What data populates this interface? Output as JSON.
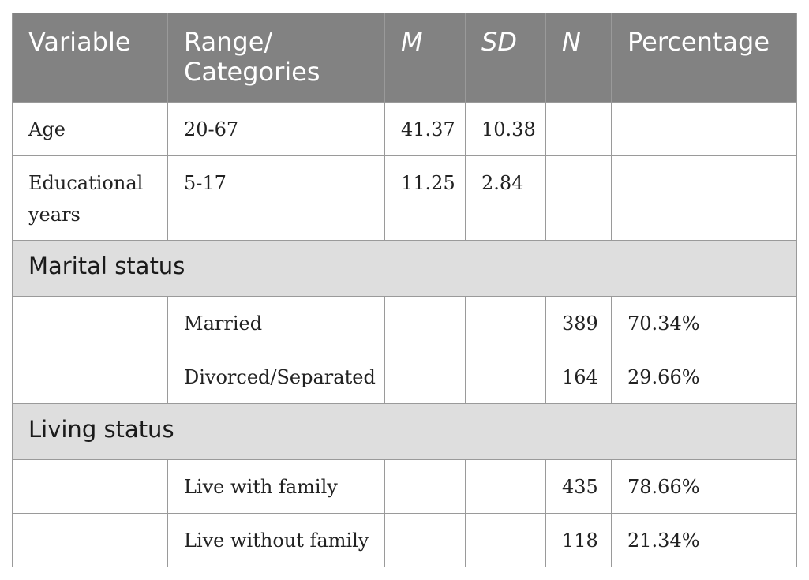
{
  "table": {
    "headers": [
      "Variable",
      "Range/ Categories",
      "M",
      "SD",
      "N",
      "Percentage"
    ],
    "rows": {
      "age": {
        "variable": "Age",
        "range": "20-67",
        "m": "41.37",
        "sd": "10.38",
        "n": "",
        "pct": ""
      },
      "edu": {
        "variable": "Educational years",
        "range": "5-17",
        "m": "11.25",
        "sd": "2.84",
        "n": "",
        "pct": ""
      }
    },
    "sections": {
      "marital": {
        "title": "Marital status",
        "rows": [
          {
            "category": "Married",
            "n": "389",
            "pct": "70.34%"
          },
          {
            "category": "Divorced/Separated",
            "n": "164",
            "pct": "29.66%"
          }
        ]
      },
      "living": {
        "title": "Living status",
        "rows": [
          {
            "category": "Live with family",
            "n": "435",
            "pct": "78.66%"
          },
          {
            "category": "Live without family",
            "n": "118",
            "pct": "21.34%"
          }
        ]
      }
    }
  }
}
